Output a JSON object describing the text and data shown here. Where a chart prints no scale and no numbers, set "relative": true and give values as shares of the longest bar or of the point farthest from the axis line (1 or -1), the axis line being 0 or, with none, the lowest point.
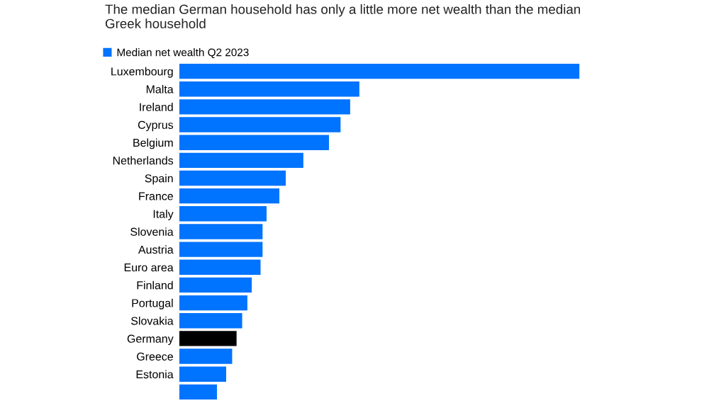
{
  "chart_data": {
    "type": "bar",
    "orientation": "horizontal",
    "relative": true,
    "title": "The median German household has only a little more net wealth than the median Greek household",
    "categories": [
      "Luxembourg",
      "Malta",
      "Ireland",
      "Cyprus",
      "Belgium",
      "Netherlands",
      "Spain",
      "France",
      "Italy",
      "Slovenia",
      "Austria",
      "Euro area",
      "Finland",
      "Portugal",
      "Slovakia",
      "Germany",
      "Greece",
      "Estonia",
      null
    ],
    "series": [
      {
        "name": "Median net wealth Q2 2023",
        "color": "#0073ff",
        "colors": [
          "#0073ff",
          "#0073ff",
          "#0073ff",
          "#0073ff",
          "#0073ff",
          "#0073ff",
          "#0073ff",
          "#0073ff",
          "#0073ff",
          "#0073ff",
          "#0073ff",
          "#0073ff",
          "#0073ff",
          "#0073ff",
          "#0073ff",
          "#000000",
          "#0073ff",
          "#0073ff",
          "#0073ff"
        ],
        "values": [
          1,
          0.45,
          0.427,
          0.403,
          0.374,
          0.31,
          0.266,
          0.25,
          0.218,
          0.208,
          0.208,
          0.203,
          0.181,
          0.17,
          0.157,
          0.143,
          0.132,
          0.117,
          0.094
        ]
      }
    ],
    "legend": "top left",
    "grid": false
  }
}
